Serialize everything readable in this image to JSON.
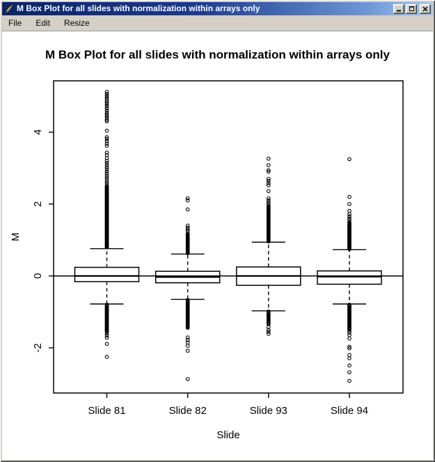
{
  "window": {
    "title": "M Box Plot for all slides with normalization within arrays only",
    "icons": {
      "app": "feather-quill-icon",
      "minimize": "minimize-icon",
      "maximize": "maximize-icon",
      "close": "close-icon"
    }
  },
  "menu": {
    "items": [
      "File",
      "Edit",
      "Resize"
    ]
  },
  "chart_data": {
    "type": "boxplot",
    "title": "M Box Plot for all slides with normalization within arrays only",
    "xlabel": "Slide",
    "ylabel": "M",
    "categories": [
      "Slide 81",
      "Slide 82",
      "Slide 93",
      "Slide 94"
    ],
    "y_ticks": [
      -2,
      0,
      2,
      4
    ],
    "ylim": [
      -3.25,
      5.45
    ],
    "reference_line_y": 0,
    "grid": false,
    "boxes": [
      {
        "label": "Slide 81",
        "q1": -0.16,
        "median": 0.0,
        "q3": 0.24,
        "whisker_low": -0.78,
        "whisker_high": 0.76,
        "outliers_high_dense": {
          "from": 0.8,
          "to": 2.5,
          "step": 0.018
        },
        "outliers_high": [
          2.55,
          2.6,
          2.66,
          2.72,
          2.78,
          2.84,
          2.9,
          2.96,
          3.02,
          3.08,
          3.14,
          3.2,
          3.28,
          3.36,
          3.43,
          3.62,
          3.68,
          3.75,
          3.81,
          3.86,
          4.04,
          4.3,
          4.34,
          4.39,
          4.44,
          4.49,
          4.54,
          4.6,
          4.66,
          4.72,
          4.77,
          4.82,
          4.87,
          4.91,
          4.96,
          5.01,
          5.06,
          5.12
        ],
        "outliers_low_dense": {
          "from": -0.8,
          "to": -1.55,
          "step": 0.022
        },
        "outliers_low": [
          -1.6,
          -1.66,
          -1.72,
          -1.89,
          -2.25
        ]
      },
      {
        "label": "Slide 82",
        "q1": -0.19,
        "median": -0.03,
        "q3": 0.13,
        "whisker_low": -0.65,
        "whisker_high": 0.61,
        "outliers_high_dense": {
          "from": 0.63,
          "to": 1.18,
          "step": 0.02
        },
        "outliers_high": [
          1.24,
          1.29,
          1.34,
          1.4,
          1.85,
          2.1,
          2.16
        ],
        "outliers_low_dense": {
          "from": -0.67,
          "to": -1.45,
          "step": 0.022
        },
        "outliers_low": [
          -1.71,
          -1.78,
          -1.85,
          -1.94,
          -2.08,
          -2.87
        ]
      },
      {
        "label": "Slide 93",
        "q1": -0.26,
        "median": 0.0,
        "q3": 0.25,
        "whisker_low": -0.97,
        "whisker_high": 0.94,
        "outliers_high_dense": {
          "from": 0.96,
          "to": 1.95,
          "step": 0.02
        },
        "outliers_high": [
          2.0,
          2.05,
          2.1,
          2.16,
          2.36,
          2.52,
          2.58,
          2.64,
          2.7,
          2.9,
          2.94,
          3.08,
          3.26
        ],
        "outliers_low_dense": {
          "from": -0.99,
          "to": -1.35,
          "step": 0.025
        },
        "outliers_low": [
          -1.42,
          -1.5,
          -1.55,
          -1.61
        ]
      },
      {
        "label": "Slide 94",
        "q1": -0.23,
        "median": -0.02,
        "q3": 0.14,
        "whisker_low": -0.78,
        "whisker_high": 0.73,
        "outliers_high_dense": {
          "from": 0.75,
          "to": 1.5,
          "step": 0.02
        },
        "outliers_high": [
          1.55,
          1.6,
          1.66,
          1.72,
          1.81,
          2.0,
          2.2,
          3.25
        ],
        "outliers_low_dense": {
          "from": -0.8,
          "to": -1.49,
          "step": 0.022
        },
        "outliers_low": [
          -1.53,
          -1.58,
          -1.65,
          -1.74,
          -1.97,
          -2.01,
          -2.2,
          -2.29,
          -2.49,
          -2.68,
          -2.92
        ]
      }
    ]
  }
}
